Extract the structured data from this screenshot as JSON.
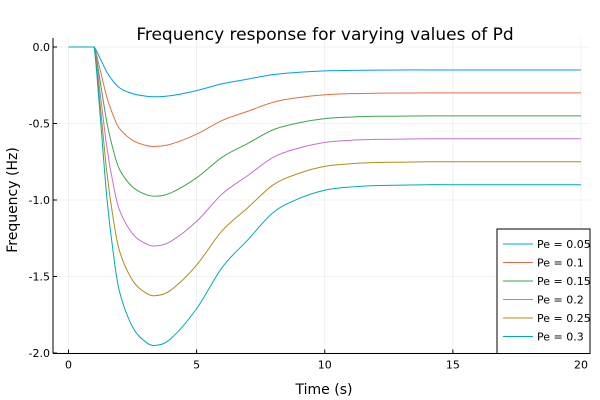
{
  "chart_data": {
    "type": "line",
    "title": "Frequency response for varying values of Pd",
    "xlabel": "Time (s)",
    "ylabel": "Frequency (Hz)",
    "xlim": [
      -0.6,
      20.6
    ],
    "ylim": [
      -2.0,
      0.06
    ],
    "xticks": [
      0,
      5,
      10,
      15,
      20
    ],
    "xtick_labels": [
      "0",
      "5",
      "10",
      "15",
      "20"
    ],
    "yticks": [
      0.0,
      -0.5,
      -1.0,
      -1.5,
      -2.0
    ],
    "ytick_labels": [
      "0.0",
      "-0.5",
      "-1.0",
      "-1.5",
      "-2.0"
    ],
    "grid": true,
    "legend_position": "bottom-right",
    "x": [
      0,
      1,
      1.25,
      1.5,
      1.75,
      2,
      2.5,
      3,
      3.4,
      4,
      5,
      6,
      7,
      8,
      9,
      10,
      11,
      12,
      13,
      14,
      15,
      17,
      20
    ],
    "series": [
      {
        "name": "Pe = 0.05",
        "color": "#009AFA",
        "values": [
          0,
          0,
          -0.08,
          -0.165,
          -0.225,
          -0.268,
          -0.305,
          -0.321,
          -0.325,
          -0.318,
          -0.285,
          -0.24,
          -0.21,
          -0.18,
          -0.165,
          -0.156,
          -0.153,
          -0.151,
          -0.15,
          -0.15,
          -0.15,
          -0.15,
          -0.15
        ]
      },
      {
        "name": "Pe = 0.1",
        "color": "#E36F47",
        "values": [
          0,
          0,
          -0.16,
          -0.33,
          -0.45,
          -0.535,
          -0.61,
          -0.642,
          -0.65,
          -0.635,
          -0.57,
          -0.48,
          -0.42,
          -0.36,
          -0.33,
          -0.312,
          -0.305,
          -0.302,
          -0.301,
          -0.3,
          -0.3,
          -0.3,
          -0.3
        ]
      },
      {
        "name": "Pe = 0.15",
        "color": "#3EA44E",
        "values": [
          0,
          0,
          -0.24,
          -0.495,
          -0.675,
          -0.803,
          -0.915,
          -0.963,
          -0.975,
          -0.953,
          -0.855,
          -0.72,
          -0.63,
          -0.54,
          -0.495,
          -0.468,
          -0.458,
          -0.453,
          -0.452,
          -0.45,
          -0.45,
          -0.45,
          -0.45
        ]
      },
      {
        "name": "Pe = 0.2",
        "color": "#C371D2",
        "values": [
          0,
          0,
          -0.32,
          -0.66,
          -0.9,
          -1.07,
          -1.22,
          -1.284,
          -1.3,
          -1.27,
          -1.14,
          -0.96,
          -0.84,
          -0.72,
          -0.66,
          -0.624,
          -0.61,
          -0.604,
          -0.602,
          -0.6,
          -0.6,
          -0.6,
          -0.6
        ]
      },
      {
        "name": "Pe = 0.25",
        "color": "#AC8E18",
        "values": [
          0,
          0,
          -0.4,
          -0.825,
          -1.125,
          -1.338,
          -1.525,
          -1.605,
          -1.625,
          -1.588,
          -1.425,
          -1.2,
          -1.05,
          -0.9,
          -0.825,
          -0.78,
          -0.763,
          -0.755,
          -0.753,
          -0.75,
          -0.75,
          -0.75,
          -0.75
        ]
      },
      {
        "name": "Pe = 0.3",
        "color": "#00AAAE",
        "values": [
          0,
          0,
          -0.48,
          -0.99,
          -1.35,
          -1.605,
          -1.83,
          -1.926,
          -1.95,
          -1.905,
          -1.71,
          -1.44,
          -1.26,
          -1.08,
          -0.99,
          -0.936,
          -0.915,
          -0.906,
          -0.903,
          -0.9,
          -0.9,
          -0.9,
          -0.9
        ]
      }
    ]
  }
}
